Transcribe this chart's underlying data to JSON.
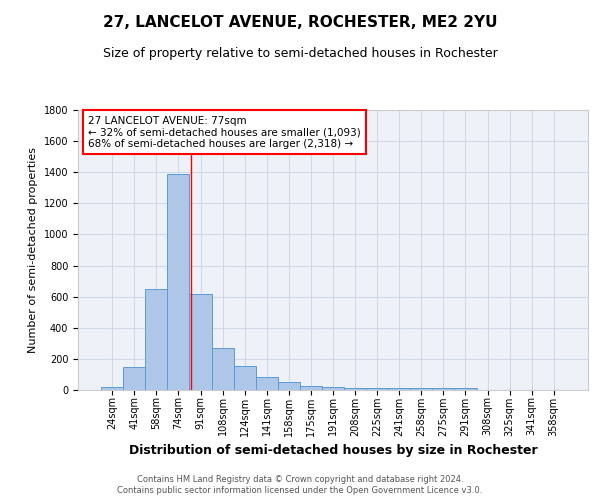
{
  "title": "27, LANCELOT AVENUE, ROCHESTER, ME2 2YU",
  "subtitle": "Size of property relative to semi-detached houses in Rochester",
  "xlabel": "Distribution of semi-detached houses by size in Rochester",
  "ylabel": "Number of semi-detached properties",
  "footer1": "Contains HM Land Registry data © Crown copyright and database right 2024.",
  "footer2": "Contains public sector information licensed under the Open Government Licence v3.0.",
  "categories": [
    "24sqm",
    "41sqm",
    "58sqm",
    "74sqm",
    "91sqm",
    "108sqm",
    "124sqm",
    "141sqm",
    "158sqm",
    "175sqm",
    "191sqm",
    "208sqm",
    "225sqm",
    "241sqm",
    "258sqm",
    "275sqm",
    "291sqm",
    "308sqm",
    "325sqm",
    "341sqm",
    "358sqm"
  ],
  "values": [
    20,
    150,
    650,
    1390,
    620,
    270,
    155,
    85,
    50,
    25,
    20,
    15,
    13,
    12,
    11,
    10,
    10,
    0,
    0,
    0,
    0
  ],
  "bar_color": "#aec6e8",
  "bar_edge_color": "#5b9bd5",
  "grid_color": "#d0d8e8",
  "background_color": "#eef2f8",
  "ylim": [
    0,
    1800
  ],
  "yticks": [
    0,
    200,
    400,
    600,
    800,
    1000,
    1200,
    1400,
    1600,
    1800
  ],
  "red_line_x": 3.55,
  "annotation_line1": "27 LANCELOT AVENUE: 77sqm",
  "annotation_line2": "← 32% of semi-detached houses are smaller (1,093)",
  "annotation_line3": "68% of semi-detached houses are larger (2,318) →",
  "title_fontsize": 11,
  "subtitle_fontsize": 9,
  "xlabel_fontsize": 9,
  "ylabel_fontsize": 8,
  "tick_fontsize": 7,
  "annotation_fontsize": 7.5,
  "footer_fontsize": 6
}
